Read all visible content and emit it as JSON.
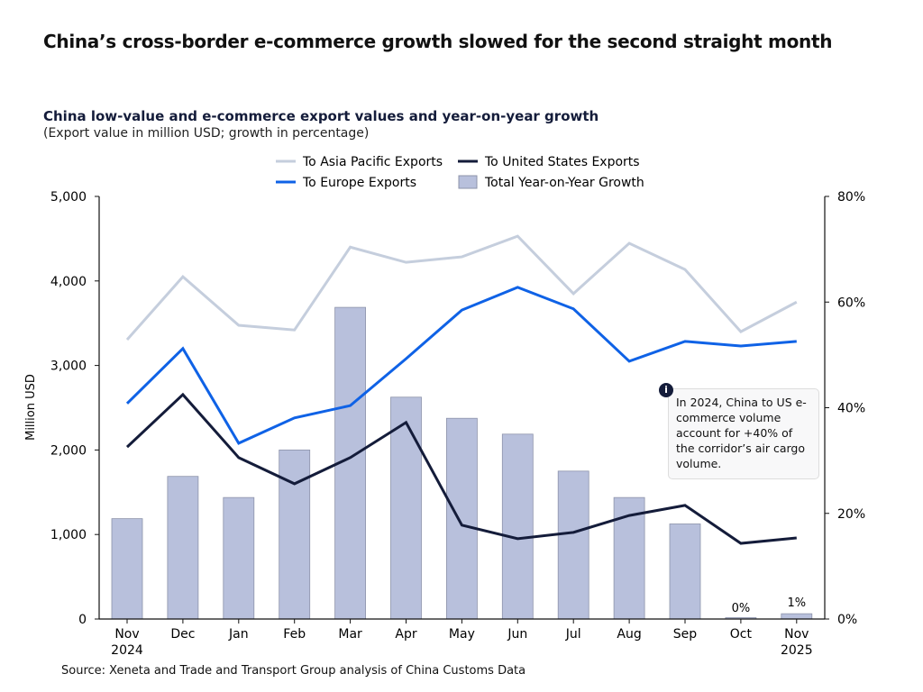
{
  "title": "China’s cross-border e-commerce growth slowed for the second straight month",
  "source": "Source: Xeneta and Trade and Transport Group analysis of China Customs Data",
  "note": {
    "icon": "info-icon",
    "text": "In 2024, China to US e-commerce volume account for +40% of the corridor’s air cargo volume."
  },
  "chart_data": {
    "type": "bar+line",
    "title": "China low-value and e-commerce export values and year-on-year growth",
    "subtitle": "(Export value in million USD; growth in percentage)",
    "ylabel": "Million USD",
    "ylim": [
      0,
      5000
    ],
    "yticks": [
      "0",
      "1,000",
      "2,000",
      "3,000",
      "4,000",
      "5,000"
    ],
    "y2lim": [
      0,
      80
    ],
    "y2ticks": [
      "0%",
      "20%",
      "40%",
      "60%",
      "80%"
    ],
    "legend_placement": "top",
    "grid": false,
    "categories": [
      "Nov\n2024",
      "Dec",
      "Jan",
      "Feb",
      "Mar",
      "Apr",
      "May",
      "Jun",
      "Jul",
      "Aug",
      "Sep",
      "Oct",
      "Nov\n2025"
    ],
    "series": [
      {
        "name": "To Asia Pacific Exports",
        "type": "line",
        "axis": "left",
        "color": "#c5cedd",
        "values": [
          3305,
          4050,
          3475,
          3420,
          4400,
          4220,
          4285,
          4530,
          3850,
          4445,
          4135,
          3400,
          3750
        ]
      },
      {
        "name": "To United States Exports",
        "type": "line",
        "axis": "left",
        "color": "#141c3a",
        "values": [
          2035,
          2655,
          1910,
          1600,
          1910,
          2325,
          1110,
          950,
          1025,
          1225,
          1345,
          895,
          960
        ]
      },
      {
        "name": "To Europe Exports",
        "type": "line",
        "axis": "left",
        "color": "#0f62e6",
        "values": [
          2550,
          3200,
          2080,
          2380,
          2525,
          3080,
          3655,
          3925,
          3670,
          3050,
          3285,
          3230,
          3285
        ]
      },
      {
        "name": "Total Year-on-Year Growth",
        "type": "bar",
        "axis": "right",
        "color": "#b8c0dc",
        "values": [
          19,
          27,
          23,
          32,
          59,
          42,
          38,
          35,
          28,
          23,
          18,
          0,
          1
        ]
      }
    ],
    "data_labels": {
      "11": "0%",
      "12": "1%"
    }
  }
}
